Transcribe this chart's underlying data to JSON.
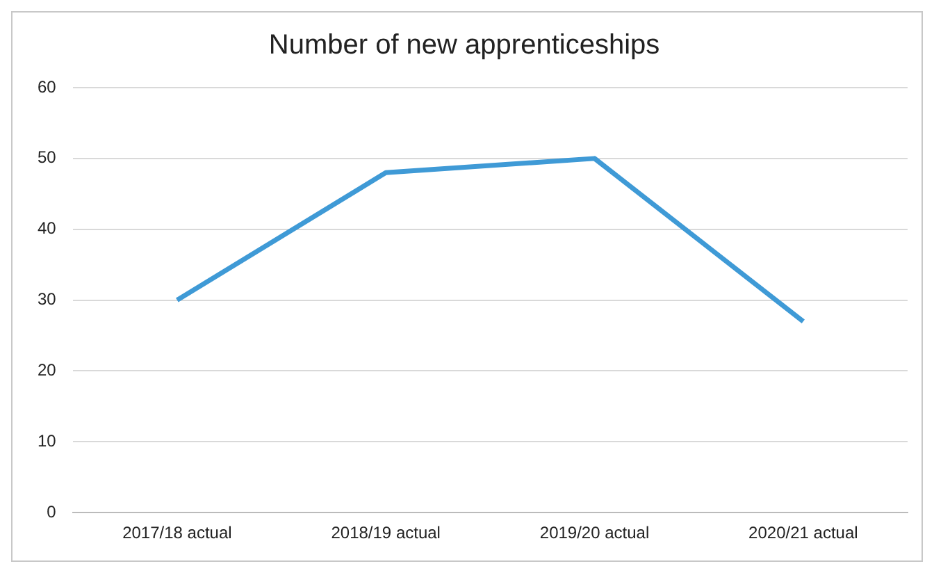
{
  "chart_data": {
    "type": "line",
    "title": "Number of new apprenticeships",
    "categories": [
      "2017/18 actual",
      "2018/19 actual",
      "2019/20 actual",
      "2020/21 actual"
    ],
    "series": [
      {
        "color": "#3f9ad6",
        "values": [
          30,
          48,
          50,
          27
        ]
      }
    ],
    "ylim": [
      0,
      60
    ],
    "yticks": [
      0,
      10,
      20,
      30,
      40,
      50,
      60
    ],
    "grid": "y",
    "legend": false,
    "marker": "none"
  }
}
